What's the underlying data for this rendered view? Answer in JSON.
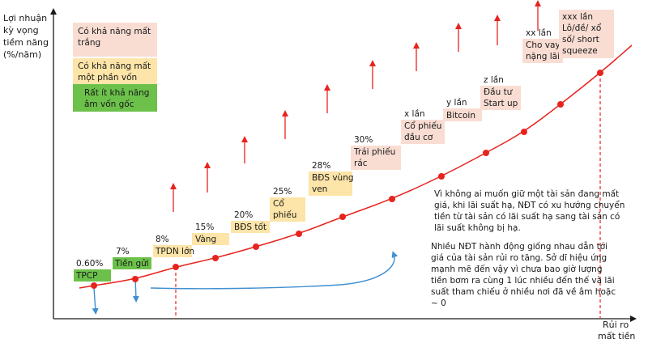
{
  "chart_data": {
    "type": "line",
    "ylabel_lines": [
      "Lợi nhuận",
      "kỳ vọng",
      "tiềm năng",
      "(%/năm)"
    ],
    "xlabel_lines": [
      "Rủi ro",
      "mất tiền"
    ],
    "legend": [
      {
        "lines": [
          "Có khả năng mất",
          "trắng"
        ],
        "color": "#f9ddd3"
      },
      {
        "lines": [
          "Có khả năng mất",
          "một phần vốn"
        ],
        "color": "#fde4a8"
      },
      {
        "lines": [
          "Rất ít khả năng",
          "âm vốn gốc"
        ],
        "color": "#6cc14a"
      }
    ],
    "points": [
      {
        "value_lines": [
          "0.60%"
        ],
        "name_lines": [
          "TPCP"
        ],
        "risk": "green"
      },
      {
        "value_lines": [
          "7%"
        ],
        "name_lines": [
          "Tiền gửi"
        ],
        "risk": "green"
      },
      {
        "value_lines": [
          "8%"
        ],
        "name_lines": [
          "TPDN lớn"
        ],
        "risk": "yellow"
      },
      {
        "value_lines": [
          "15%"
        ],
        "name_lines": [
          "Vàng"
        ],
        "risk": "yellow"
      },
      {
        "value_lines": [
          "20%"
        ],
        "name_lines": [
          "BĐS tốt"
        ],
        "risk": "yellow"
      },
      {
        "value_lines": [
          "25%"
        ],
        "name_lines": [
          "Cổ",
          "phiếu"
        ],
        "risk": "yellow"
      },
      {
        "value_lines": [
          "28%"
        ],
        "name_lines": [
          "BĐS vùng",
          "ven"
        ],
        "risk": "yellow"
      },
      {
        "value_lines": [
          "30%"
        ],
        "name_lines": [
          "Trái phiếu",
          "rác"
        ],
        "risk": "pink"
      },
      {
        "value_lines": [
          "x lần"
        ],
        "name_lines": [
          "Cổ phiếu",
          "đầu cơ"
        ],
        "risk": "pink"
      },
      {
        "value_lines": [
          "y lần"
        ],
        "name_lines": [
          "Bitcoin"
        ],
        "risk": "pink"
      },
      {
        "value_lines": [
          "z lần"
        ],
        "name_lines": [
          "Đầu tư",
          "Start up"
        ],
        "risk": "pink"
      },
      {
        "value_lines": [
          "xx lần"
        ],
        "name_lines": [
          "Cho vay",
          "nặng lãi"
        ],
        "risk": "pink"
      },
      {
        "value_lines": [],
        "name_lines": [
          "xxx lần",
          "Lô/đề/ xổ",
          "số/ short",
          "squeeze"
        ],
        "risk": "pink"
      }
    ],
    "annotation1_lines": [
      "Vì không ai muốn giữ một tài sản đang mất",
      "giá, khi lãi suất hạ, NĐT có xu hướng chuyển",
      "tiền từ tài sản có lãi suất hạ sang tài sản có",
      "lãi suất không bị hạ."
    ],
    "annotation2_lines": [
      "Nhiều NĐT hành động giống nhau dẫn tới",
      "giá của tài sản rủi ro tăng. Sở dĩ hiệu ứng",
      "mạnh mẽ đến vậy vì chưa bao giờ lượng",
      "tiền bơm ra cùng 1 lúc nhiều đến thế và lãi",
      "suất tham chiếu ở nhiều nơi đã về âm hoặc",
      "~ 0"
    ],
    "colors": {
      "curve": "#e8231e",
      "arrow_up": "#e8231e",
      "arrow_blue": "#3f8fd1",
      "axis": "#1a1a1a",
      "pink": "#f9ddd3",
      "yellow": "#fde4a8",
      "green": "#6cc14a"
    }
  }
}
